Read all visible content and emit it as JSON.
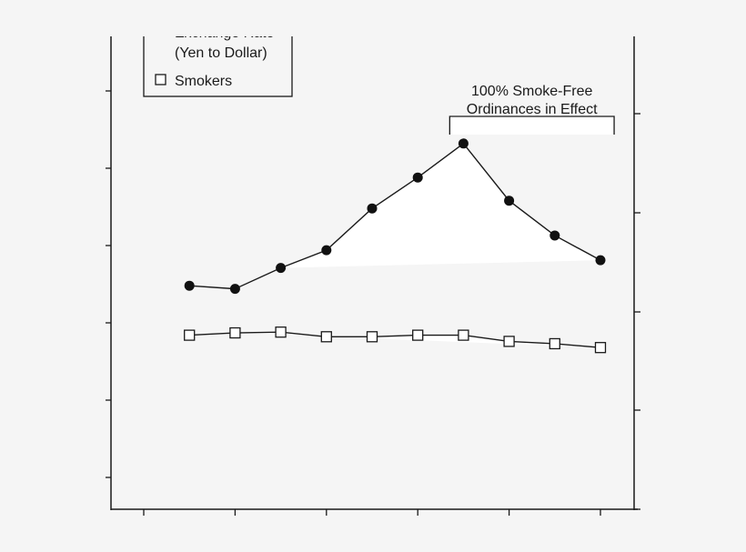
{
  "chart_data": {
    "type": "line",
    "title": "",
    "xlabel": "",
    "ylabel": "",
    "x": [
      1,
      2,
      3,
      4,
      5,
      6,
      7,
      8,
      9,
      10
    ],
    "xlim": [
      0,
      10.8
    ],
    "ylim": [
      -0.41,
      5.7
    ],
    "tick_labels_shown": false,
    "grid": false,
    "legend_placement": "top-left",
    "series": [
      {
        "name": "Exchange Rate",
        "name_line2": "(Yen to Dollar)",
        "marker": "filled-circle",
        "color": "#111111",
        "values": [
          2.48,
          2.44,
          2.71,
          2.94,
          3.48,
          3.88,
          4.32,
          3.58,
          3.13,
          2.81
        ]
      },
      {
        "name": "Smokers",
        "marker": "open-square",
        "color": "#111111",
        "values": [
          1.84,
          1.87,
          1.88,
          1.82,
          1.82,
          1.84,
          1.84,
          1.76,
          1.73,
          1.68
        ]
      }
    ],
    "annotation": {
      "line1": "100% Smoke-Free",
      "line2": "Ordinances in Effect",
      "x_range": [
        6.7,
        10.3
      ]
    },
    "colors": {
      "background": "#f5f5f5",
      "fill": "#ffffff",
      "ink": "#1a1a1a"
    }
  }
}
